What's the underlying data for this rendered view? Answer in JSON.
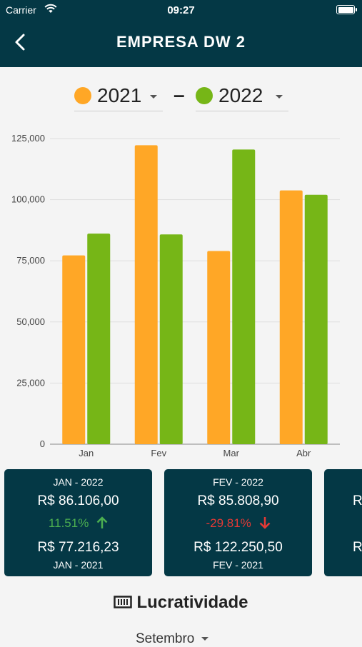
{
  "status_bar": {
    "carrier": "Carrier",
    "time": "09:27"
  },
  "header": {
    "title": "EMPRESA DW 2"
  },
  "year_selectors": [
    {
      "year": "2021",
      "color": "#FFA726"
    },
    {
      "year": "2022",
      "color": "#76B617"
    }
  ],
  "separator": "–",
  "chart_data": {
    "type": "bar",
    "categories": [
      "Jan",
      "Fev",
      "Mar",
      "Abr"
    ],
    "series": [
      {
        "name": "2021",
        "color": "#FFA726",
        "values": [
          77216.23,
          122250.5,
          79000,
          103800
        ]
      },
      {
        "name": "2022",
        "color": "#76B617",
        "values": [
          86106.0,
          85808.9,
          120500,
          102000
        ]
      }
    ],
    "y_ticks": [
      "0",
      "25,000",
      "50,000",
      "75,000",
      "100,000",
      "125,000"
    ],
    "ylim": [
      0,
      125000
    ],
    "grid": true,
    "title": "",
    "xlabel": "",
    "ylabel": ""
  },
  "cards": [
    {
      "period_current": "JAN - 2022",
      "value_current": "R$ 86.106,00",
      "change": "11.51%",
      "direction": "up",
      "change_color": "#4CAF50",
      "value_previous": "R$ 77.216,23",
      "period_previous": "JAN - 2021"
    },
    {
      "period_current": "FEV - 2022",
      "value_current": "R$ 85.808,90",
      "change": "-29.81%",
      "direction": "down",
      "change_color": "#E53935",
      "value_previous": "R$ 122.250,50",
      "period_previous": "FEV - 2021"
    },
    {
      "period_current": "",
      "value_current": "R",
      "change": "",
      "direction": "",
      "change_color": "#FFFFFF",
      "value_previous": "R",
      "period_previous": ""
    }
  ],
  "section": {
    "title": "Lucratividade",
    "icon": "ledger-icon"
  },
  "month_select": {
    "value": "Setembro"
  }
}
